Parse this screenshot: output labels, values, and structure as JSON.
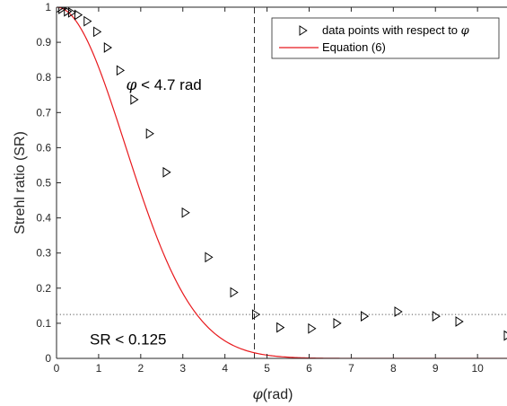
{
  "chart_data": {
    "type": "scatter",
    "xlabel_symbol": "φ",
    "xlabel_text": "(rad)",
    "ylabel": "Strehl ratio (SR)",
    "xlim": [
      0,
      10.7
    ],
    "ylim": [
      0,
      1
    ],
    "xticks": [
      "0",
      "1",
      "2",
      "3",
      "4",
      "5",
      "6",
      "7",
      "8",
      "9",
      "10"
    ],
    "yticks": [
      "0",
      "0.1",
      "0.2",
      "0.3",
      "0.4",
      "0.5",
      "0.6",
      "0.7",
      "0.8",
      "0.9",
      "1"
    ],
    "grid": false,
    "legend_position": "top-right",
    "legend": {
      "data_label": "data points with respect to",
      "data_symbol": "φ",
      "line_label": "Equation (6)"
    },
    "series": [
      {
        "kind": "markers",
        "marker": "triangle-right",
        "color": "#000000",
        "x": [
          0.05,
          0.12,
          0.25,
          0.35,
          0.5,
          0.72,
          0.95,
          1.2,
          1.5,
          1.83,
          2.2,
          2.6,
          3.05,
          3.6,
          4.2,
          4.72,
          5.3,
          6.05,
          6.65,
          7.3,
          8.1,
          9.0,
          9.55,
          10.7
        ],
        "y": [
          0.997,
          0.995,
          0.988,
          0.985,
          0.978,
          0.96,
          0.93,
          0.885,
          0.82,
          0.737,
          0.64,
          0.53,
          0.415,
          0.288,
          0.188,
          0.125,
          0.088,
          0.085,
          0.1,
          0.12,
          0.133,
          0.12,
          0.105,
          0.065
        ]
      },
      {
        "kind": "line",
        "color": "#e8191d",
        "formula_sigma": 2.31
      }
    ],
    "reference_lines": [
      {
        "orientation": "vertical",
        "x": 4.7,
        "style": "dashed"
      },
      {
        "orientation": "horizontal",
        "y": 0.125,
        "style": "dotted"
      }
    ],
    "annotations": [
      {
        "symbol": "φ",
        "text": " < 4.7 rad",
        "x": 2.55,
        "y": 0.78
      },
      {
        "text": "SR < 0.125",
        "x": 1.7,
        "y": 0.055
      }
    ]
  }
}
